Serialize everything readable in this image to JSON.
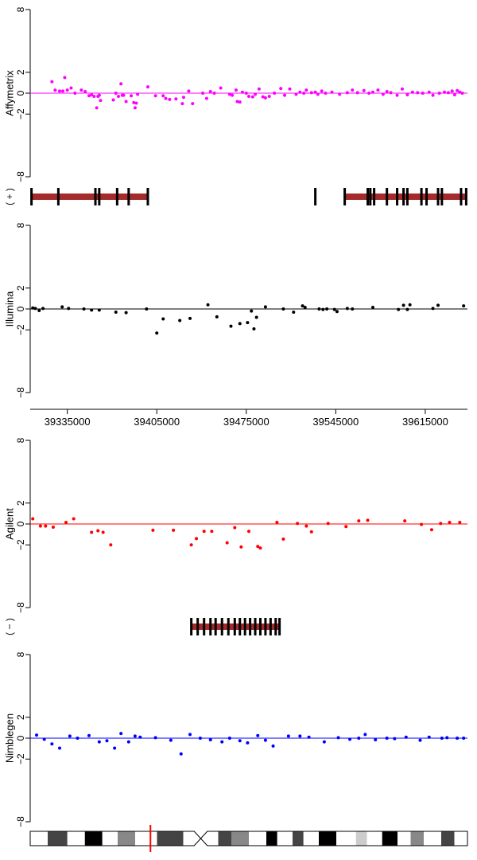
{
  "chart_data": [
    {
      "type": "scatter",
      "panel": "affymetrix",
      "ylabel": "Affymetrix",
      "color": "#ff00ff",
      "ylim": [
        -8,
        8
      ],
      "y_ticks": [
        {
          "v": 8,
          "label": "8"
        },
        {
          "v": 2,
          "label": "2"
        },
        {
          "v": 0,
          "label": "0"
        },
        {
          "v": -2,
          "label": "−2"
        },
        {
          "v": -8,
          "label": "−8"
        }
      ],
      "xlim": [
        39306000,
        39648000
      ],
      "baseline": 0,
      "x": [
        39323000,
        39325500,
        39329000,
        39331500,
        39333000,
        39335000,
        39338000,
        39341000,
        39346000,
        39349000,
        39352000,
        39354000,
        39356000,
        39358000,
        39359000,
        39360000,
        39361000,
        39371000,
        39373000,
        39375000,
        39377000,
        39378000,
        39379000,
        39381000,
        39385000,
        39387000,
        39388000,
        39389000,
        39390000,
        39398000,
        39404000,
        39410000,
        39412000,
        39415000,
        39420000,
        39425000,
        39426000,
        39430000,
        39433000,
        39441000,
        39444000,
        39447000,
        39450000,
        39455000,
        39462000,
        39464000,
        39467000,
        39468000,
        39470000,
        39472000,
        39475000,
        39477000,
        39480000,
        39482000,
        39485000,
        39488000,
        39490000,
        39493000,
        39497000,
        39502000,
        39505000,
        39509000,
        39514000,
        39517000,
        39520000,
        39522000,
        39526000,
        39529000,
        39531000,
        39534000,
        39537000,
        39542000,
        39548000,
        39554000,
        39558000,
        39562000,
        39567000,
        39571000,
        39574000,
        39578000,
        39582000,
        39585000,
        39588000,
        39593000,
        39597000,
        39601000,
        39605000,
        39609000,
        39613000,
        39618000,
        39621000,
        39626000,
        39630000,
        39633000,
        39636000,
        39638000,
        39640000,
        39642000,
        39644000
      ],
      "y": [
        1.1,
        0.3,
        0.2,
        0.2,
        1.5,
        0.3,
        0.5,
        0.0,
        0.3,
        0.15,
        -0.25,
        -0.15,
        -0.3,
        -1.4,
        -0.3,
        -0.2,
        -0.7,
        -0.65,
        0.0,
        -0.3,
        0.9,
        -0.2,
        -0.2,
        -0.8,
        -0.25,
        -0.9,
        -1.4,
        -0.95,
        -0.1,
        0.6,
        -0.25,
        -0.25,
        -0.5,
        -0.6,
        -0.55,
        -1.0,
        -0.4,
        0.2,
        -1.0,
        0.0,
        -0.5,
        0.15,
        0.0,
        0.5,
        -0.1,
        -0.2,
        0.3,
        -0.8,
        -0.85,
        0.1,
        0.0,
        -0.3,
        -0.35,
        -0.1,
        0.4,
        -0.35,
        -0.45,
        -0.3,
        0.0,
        0.45,
        -0.2,
        0.4,
        -0.1,
        0.1,
        0.0,
        0.3,
        0.05,
        0.1,
        -0.1,
        0.2,
        0.0,
        0.1,
        -0.1,
        0.05,
        0.3,
        0.05,
        0.25,
        0.0,
        0.1,
        0.3,
        -0.1,
        0.15,
        0.05,
        -0.2,
        0.4,
        -0.15,
        0.1,
        0.05,
        0.0,
        0.1,
        -0.2,
        0.0,
        0.1,
        0.05,
        0.2,
        -0.15,
        0.25,
        0.1,
        0.0
      ]
    },
    {
      "type": "scatter",
      "panel": "illumina",
      "ylabel": "Illumina",
      "color": "#000000",
      "ylim": [
        -8,
        8
      ],
      "y_ticks": [
        {
          "v": 8,
          "label": "8"
        },
        {
          "v": 2,
          "label": "2"
        },
        {
          "v": 0,
          "label": "0"
        },
        {
          "v": -2,
          "label": "−2"
        },
        {
          "v": -8,
          "label": "−8"
        }
      ],
      "xlim": [
        39306000,
        39648000
      ],
      "baseline": 0,
      "x": [
        39308000,
        39310000,
        39313000,
        39316000,
        39331000,
        39336000,
        39348000,
        39354000,
        39360000,
        39373000,
        39381000,
        39397000,
        39405000,
        39410000,
        39423000,
        39431000,
        39445000,
        39452000,
        39463000,
        39470000,
        39476000,
        39479000,
        39481000,
        39483000,
        39490000,
        39504000,
        39512000,
        39519000,
        39521000,
        39532000,
        39535000,
        39538000,
        39544000,
        39546000,
        39554000,
        39558000,
        39574000,
        39594000,
        39598000,
        39601000,
        39603000,
        39621000,
        39625000,
        39645000
      ],
      "y": [
        0.1,
        0.05,
        -0.15,
        0.05,
        0.2,
        0.05,
        0.0,
        -0.1,
        -0.1,
        -0.3,
        -0.35,
        0.0,
        -2.3,
        -0.95,
        -1.1,
        -0.9,
        0.4,
        -0.75,
        -1.65,
        -1.4,
        -1.3,
        -0.2,
        -1.9,
        -0.8,
        0.2,
        0.0,
        -0.3,
        0.3,
        0.15,
        0.0,
        -0.05,
        0.0,
        -0.05,
        -0.25,
        0.05,
        0.0,
        0.15,
        -0.05,
        0.35,
        -0.05,
        0.4,
        0.05,
        0.35,
        0.3
      ]
    },
    {
      "type": "scatter",
      "panel": "agilent",
      "ylabel": "Agilent",
      "color": "#ff0000",
      "ylim": [
        -8,
        8
      ],
      "y_ticks": [
        {
          "v": 8,
          "label": "8"
        },
        {
          "v": 2,
          "label": "2"
        },
        {
          "v": 0,
          "label": "0"
        },
        {
          "v": -2,
          "label": "−2"
        },
        {
          "v": -8,
          "label": "−8"
        }
      ],
      "xlim": [
        39306000,
        39648000
      ],
      "baseline": 0,
      "x": [
        39308000,
        39314000,
        39318000,
        39324000,
        39334000,
        39340000,
        39354000,
        39359000,
        39363000,
        39369000,
        39402000,
        39418000,
        39432000,
        39436000,
        39442000,
        39448000,
        39460000,
        39466000,
        39471000,
        39477000,
        39484000,
        39486000,
        39499000,
        39504000,
        39515000,
        39522000,
        39526000,
        39539000,
        39553000,
        39563000,
        39570000,
        39599000,
        39612000,
        39620000,
        39627000,
        39634000,
        39642000
      ],
      "y": [
        0.5,
        -0.2,
        -0.2,
        -0.3,
        0.15,
        0.5,
        -0.8,
        -0.65,
        -0.8,
        -2.0,
        -0.6,
        -0.6,
        -2.0,
        -1.4,
        -0.7,
        -0.7,
        -1.8,
        -0.35,
        -2.2,
        -0.7,
        -2.15,
        -2.3,
        0.15,
        -1.45,
        0.05,
        -0.2,
        -0.75,
        0.05,
        -0.25,
        0.3,
        0.35,
        0.3,
        -0.05,
        -0.55,
        0.05,
        0.15,
        0.15
      ]
    },
    {
      "type": "scatter",
      "panel": "nimblegen",
      "ylabel": "Nimblegen",
      "color": "#0000ff",
      "ylim": [
        -8,
        8
      ],
      "y_ticks": [
        {
          "v": 8,
          "label": "8"
        },
        {
          "v": 2,
          "label": "2"
        },
        {
          "v": 0,
          "label": "0"
        },
        {
          "v": -2,
          "label": "−2"
        },
        {
          "v": -8,
          "label": "−8"
        }
      ],
      "xlim": [
        39306000,
        39648000
      ],
      "baseline": 0,
      "x": [
        39311000,
        39317000,
        39323000,
        39329000,
        39337000,
        39343000,
        39352000,
        39360000,
        39366000,
        39372000,
        39377000,
        39383000,
        39388000,
        39392000,
        39404000,
        39416000,
        39424000,
        39431000,
        39439000,
        39447000,
        39456000,
        39462000,
        39470000,
        39476000,
        39484000,
        39490000,
        39496000,
        39508000,
        39517000,
        39524000,
        39536000,
        39547000,
        39556000,
        39563000,
        39568000,
        39576000,
        39585000,
        39591000,
        39600000,
        39611000,
        39618000,
        39628000,
        39632000,
        39640000,
        39645000
      ],
      "y": [
        0.3,
        -0.1,
        -0.55,
        -0.95,
        0.2,
        0.0,
        0.25,
        -0.35,
        -0.25,
        -0.95,
        0.45,
        -0.35,
        0.2,
        0.1,
        0.05,
        -0.2,
        -1.5,
        0.35,
        0.0,
        -0.15,
        -0.35,
        0.0,
        -0.25,
        -0.45,
        0.25,
        -0.2,
        -0.75,
        0.2,
        0.2,
        0.1,
        -0.35,
        0.05,
        -0.1,
        0.0,
        0.35,
        -0.15,
        0.0,
        -0.05,
        0.1,
        -0.2,
        0.1,
        0.0,
        0.05,
        0.0,
        0.0
      ]
    }
  ],
  "x_axis": {
    "ticks": [
      {
        "v": 39335000,
        "label": "39335000"
      },
      {
        "v": 39405000,
        "label": "39405000"
      },
      {
        "v": 39475000,
        "label": "39475000"
      },
      {
        "v": 39545000,
        "label": "39545000"
      },
      {
        "v": 39615000,
        "label": "39615000"
      }
    ]
  },
  "tracks": {
    "plus_label": "( + )",
    "minus_label": "( − )",
    "bar_color": "#a52a2a",
    "plus_genes": [
      {
        "start": 39307000,
        "end": 39398000,
        "exons": [
          39307000,
          39328000,
          39357000,
          39360000,
          39374000,
          39383000,
          39398000
        ]
      },
      {
        "start": 39552000,
        "end": 39647000,
        "exons": [
          39552000,
          39570000,
          39572000,
          39575000,
          39585000,
          39593000,
          39598000,
          39601000,
          39612000,
          39616000,
          39625000,
          39628000,
          39643000,
          39647000
        ]
      }
    ],
    "plus_single_marks": [
      39529000
    ],
    "minus_genes": [
      {
        "start": 39432000,
        "end": 39501000,
        "exons": [
          39432000,
          39437000,
          39442000,
          39447000,
          39451000,
          39456000,
          39461000,
          39466000,
          39470000,
          39474000,
          39478000,
          39482000,
          39486000,
          39490000,
          39494000,
          39498000,
          39501000
        ]
      }
    ]
  },
  "ideogram": {
    "bands": [
      {
        "start": 0.0,
        "end": 0.04,
        "shade": "#ffffff"
      },
      {
        "start": 0.04,
        "end": 0.085,
        "shade": "#444444"
      },
      {
        "start": 0.085,
        "end": 0.125,
        "shade": "#ffffff"
      },
      {
        "start": 0.125,
        "end": 0.165,
        "shade": "#000000"
      },
      {
        "start": 0.165,
        "end": 0.2,
        "shade": "#ffffff"
      },
      {
        "start": 0.2,
        "end": 0.24,
        "shade": "#888888"
      },
      {
        "start": 0.24,
        "end": 0.29,
        "shade": "#ffffff"
      },
      {
        "start": 0.29,
        "end": 0.35,
        "shade": "#444444"
      },
      {
        "start": 0.35,
        "end": 0.375,
        "shade": "#ffffff"
      },
      {
        "start": 0.405,
        "end": 0.43,
        "shade": "#ffffff"
      },
      {
        "start": 0.43,
        "end": 0.46,
        "shade": "#444444"
      },
      {
        "start": 0.46,
        "end": 0.5,
        "shade": "#888888"
      },
      {
        "start": 0.5,
        "end": 0.54,
        "shade": "#ffffff"
      },
      {
        "start": 0.54,
        "end": 0.565,
        "shade": "#000000"
      },
      {
        "start": 0.565,
        "end": 0.6,
        "shade": "#ffffff"
      },
      {
        "start": 0.6,
        "end": 0.625,
        "shade": "#444444"
      },
      {
        "start": 0.625,
        "end": 0.66,
        "shade": "#ffffff"
      },
      {
        "start": 0.66,
        "end": 0.7,
        "shade": "#000000"
      },
      {
        "start": 0.7,
        "end": 0.745,
        "shade": "#ffffff"
      },
      {
        "start": 0.745,
        "end": 0.77,
        "shade": "#cccccc"
      },
      {
        "start": 0.77,
        "end": 0.805,
        "shade": "#ffffff"
      },
      {
        "start": 0.805,
        "end": 0.84,
        "shade": "#000000"
      },
      {
        "start": 0.84,
        "end": 0.87,
        "shade": "#ffffff"
      },
      {
        "start": 0.87,
        "end": 0.9,
        "shade": "#888888"
      },
      {
        "start": 0.9,
        "end": 0.94,
        "shade": "#ffffff"
      },
      {
        "start": 0.94,
        "end": 0.97,
        "shade": "#444444"
      },
      {
        "start": 0.97,
        "end": 1.0,
        "shade": "#ffffff"
      }
    ],
    "centromere": {
      "start": 0.375,
      "end": 0.405
    },
    "marker_fraction": 0.275,
    "marker_color": "#ff0000"
  }
}
